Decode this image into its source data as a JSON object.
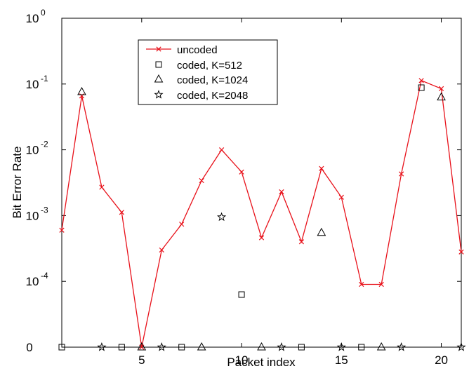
{
  "chart_data": {
    "type": "line",
    "title": "",
    "xlabel": "Packet index",
    "ylabel": "Bit Error Rate",
    "x_range": [
      1,
      21
    ],
    "x_ticks": [
      5,
      10,
      15,
      20
    ],
    "y_scale": "log",
    "y_range": [
      1e-05,
      1
    ],
    "y_ticks": [
      {
        "base": "0",
        "exp": ""
      },
      {
        "base": "10",
        "exp": "-4"
      },
      {
        "base": "10",
        "exp": "-3"
      },
      {
        "base": "10",
        "exp": "-2"
      },
      {
        "base": "10",
        "exp": "-1"
      },
      {
        "base": "10",
        "exp": "0"
      }
    ],
    "zero_row_note": "packets with zero bit errors are plotted on the row labelled 0",
    "grid": false,
    "legend_position": "top-left",
    "series": [
      {
        "name": "uncoded",
        "style": "line-x",
        "color": "#e8111a",
        "points": [
          [
            1,
            0.0006
          ],
          [
            2,
            0.066
          ],
          [
            3,
            0.0027
          ],
          [
            4,
            0.00112
          ],
          [
            5,
            0
          ],
          [
            6,
            0.0003
          ],
          [
            7,
            0.00074
          ],
          [
            8,
            0.0034
          ],
          [
            9,
            0.01
          ],
          [
            10,
            0.0046
          ],
          [
            11,
            0.00046
          ],
          [
            12,
            0.0023
          ],
          [
            13,
            0.0004
          ],
          [
            14,
            0.0052
          ],
          [
            15,
            0.0019
          ],
          [
            16,
            9e-05
          ],
          [
            17,
            9e-05
          ],
          [
            18,
            0.0043
          ],
          [
            19,
            0.113
          ],
          [
            20,
            0.085
          ],
          [
            21,
            0.00028
          ]
        ]
      },
      {
        "name": "coded, K=512",
        "style": "square",
        "color": "#000000",
        "points": [
          [
            1,
            0
          ],
          [
            4,
            0
          ],
          [
            7,
            0
          ],
          [
            10,
            6.3e-05
          ],
          [
            13,
            0
          ],
          [
            16,
            0
          ],
          [
            19,
            0.088
          ]
        ]
      },
      {
        "name": "coded, K=1024",
        "style": "triangle",
        "color": "#000000",
        "points": [
          [
            2,
            0.076
          ],
          [
            5,
            0
          ],
          [
            8,
            0
          ],
          [
            11,
            0
          ],
          [
            14,
            0.00055
          ],
          [
            17,
            0
          ],
          [
            20,
            0.063
          ]
        ]
      },
      {
        "name": "coded, K=2048",
        "style": "star",
        "color": "#000000",
        "points": [
          [
            3,
            0
          ],
          [
            6,
            0
          ],
          [
            9,
            0.00095
          ],
          [
            12,
            0
          ],
          [
            15,
            0
          ],
          [
            18,
            0
          ],
          [
            21,
            0
          ]
        ]
      }
    ]
  }
}
